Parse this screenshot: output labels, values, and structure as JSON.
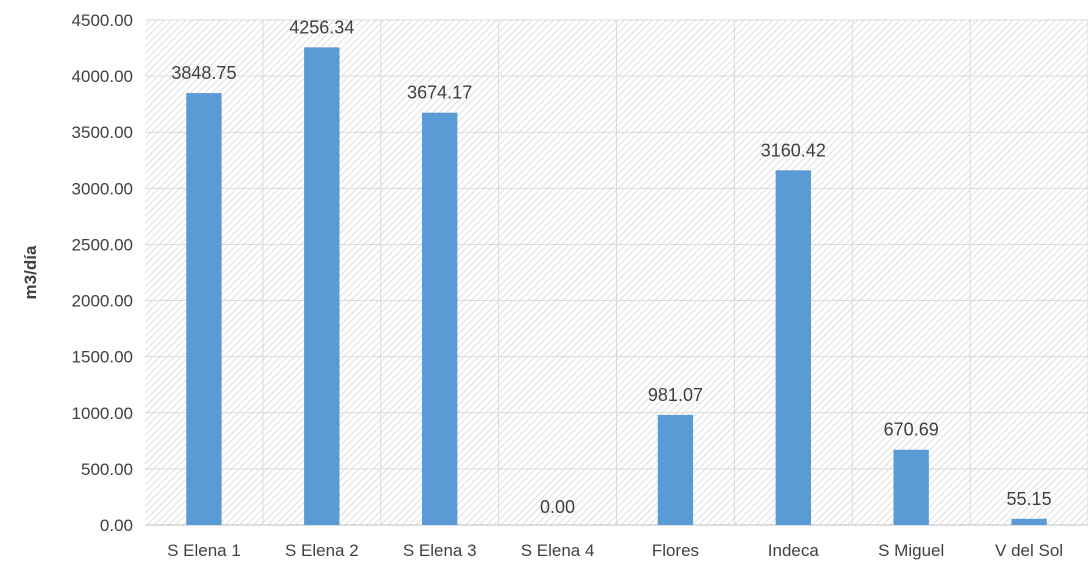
{
  "chart_data": {
    "type": "bar",
    "title": "",
    "xlabel": "",
    "ylabel": "m3/día",
    "categories": [
      "S Elena 1",
      "S Elena 2",
      "S Elena 3",
      "S Elena 4",
      "Flores",
      "Indeca",
      "S Miguel",
      "V del Sol"
    ],
    "values": [
      3848.75,
      4256.34,
      3674.17,
      0.0,
      981.07,
      3160.42,
      670.69,
      55.15
    ],
    "data_labels": [
      "3848.75",
      "4256.34",
      "3674.17",
      "0.00",
      "981.07",
      "3160.42",
      "670.69",
      "55.15"
    ],
    "ylim": [
      0,
      4500
    ],
    "yticks": [
      "0.00",
      "500.00",
      "1000.00",
      "1500.00",
      "2000.00",
      "2500.00",
      "3000.00",
      "3500.00",
      "4000.00",
      "4500.00"
    ],
    "grid": true,
    "legend": "none",
    "bar_color": "#5B9BD5",
    "gridline_color": "#d9d9d9",
    "plot_background": "hatched"
  }
}
